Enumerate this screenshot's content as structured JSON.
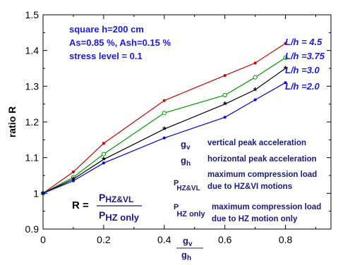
{
  "chart_data": {
    "type": "line",
    "title": "",
    "xlabel": "",
    "xlabel_fraction": {
      "numerator": "g_v",
      "denominator": "g_h"
    },
    "ylabel": "ratio R",
    "xlim": [
      0,
      0.95
    ],
    "ylim": [
      0.9,
      1.5
    ],
    "x_ticks": [
      "0",
      "0.2",
      "0.4",
      "0.6",
      "0.8"
    ],
    "y_ticks": [
      "0.9",
      "1",
      "1.1",
      "1.2",
      "1.3",
      "1.4",
      "1.5"
    ],
    "grid": false,
    "series": [
      {
        "name": "L/h = 4.5",
        "color": "#cc0000",
        "marker": "dot",
        "x": [
          0,
          0.1,
          0.2,
          0.4,
          0.6,
          0.7,
          0.8
        ],
        "y": [
          1.0,
          1.06,
          1.14,
          1.26,
          1.33,
          1.365,
          1.42
        ]
      },
      {
        "name": "L/h =3.75",
        "color": "#009900",
        "marker": "circle",
        "x": [
          0,
          0.1,
          0.2,
          0.4,
          0.6,
          0.7,
          0.8
        ],
        "y": [
          1.0,
          1.045,
          1.11,
          1.225,
          1.275,
          1.325,
          1.38
        ]
      },
      {
        "name": "L/h =3.0",
        "color": "#000000",
        "marker": "star",
        "x": [
          0,
          0.1,
          0.2,
          0.4,
          0.6,
          0.7,
          0.8
        ],
        "y": [
          1.0,
          1.04,
          1.095,
          1.18,
          1.25,
          1.29,
          1.35
        ]
      },
      {
        "name": "L/h =2.0",
        "color": "#0000dd",
        "marker": "dot",
        "x": [
          0,
          0.1,
          0.2,
          0.4,
          0.6,
          0.7,
          0.8
        ],
        "y": [
          1.0,
          1.035,
          1.085,
          1.155,
          1.213,
          1.262,
          1.31
        ]
      }
    ],
    "annotations": {
      "info_lines": [
        "square h=200 cm",
        "As=0.85 %, Ash=0.15 %",
        "stress level = 0.1"
      ],
      "formula": {
        "lhs": "R =",
        "numerator": "P",
        "numerator_sub": "HZ&VL",
        "denominator": "P",
        "denominator_sub": "HZ only"
      },
      "legend": [
        {
          "symbol": "g",
          "sub": "v",
          "text": "vertical peak acceleration"
        },
        {
          "symbol": "g",
          "sub": "h",
          "text": "horizontal peak acceleration"
        },
        {
          "symbol": "P",
          "sub": "HZ&VL",
          "text": [
            "maximum compression load",
            "due to HZ&VI motions"
          ]
        },
        {
          "symbol": "P",
          "sub": "HZ only",
          "text": [
            "maximum compression load",
            "due to HZ motion only"
          ]
        }
      ]
    }
  }
}
